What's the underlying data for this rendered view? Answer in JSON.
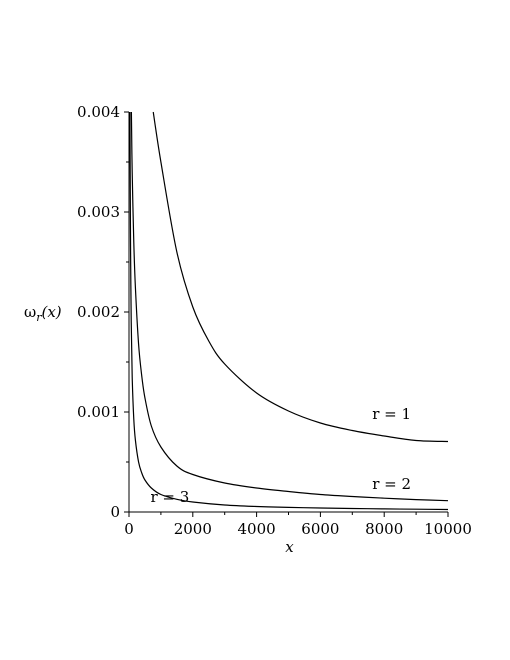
{
  "chart_data": {
    "type": "line",
    "xlabel": "x",
    "ylabel": "ω_r(x)",
    "ylabel_main": "ω",
    "ylabel_sub": "r",
    "ylabel_rest": "(x)",
    "xlim": [
      0,
      10000
    ],
    "ylim": [
      0,
      0.004
    ],
    "x_ticks": [
      0,
      2000,
      4000,
      6000,
      8000,
      10000
    ],
    "x_tick_labels": [
      "0",
      "2000",
      "4000",
      "6000",
      "8000",
      "10000"
    ],
    "y_ticks": [
      0,
      0.001,
      0.002,
      0.003,
      0.004
    ],
    "y_tick_labels": [
      "0",
      "0.001",
      "0.002",
      "0.003",
      "0.004"
    ],
    "grid": false,
    "series": [
      {
        "name": "r = 1",
        "label_at": [
          8000,
          0.00098
        ],
        "x": [
          760,
          1000,
          1500,
          2000,
          2500,
          3000,
          4000,
          5000,
          6000,
          7000,
          8000,
          9000,
          10000
        ],
        "y": [
          0.004,
          0.0035,
          0.0026,
          0.00205,
          0.00171,
          0.00148,
          0.00119,
          0.00101,
          0.00089,
          0.000815,
          0.00076,
          0.000715,
          0.000705
        ]
      },
      {
        "name": "r = 2",
        "label_at": [
          8000,
          0.00028
        ],
        "x": [
          75,
          100,
          150,
          200,
          300,
          400,
          500,
          700,
          1000,
          1500,
          2000,
          3000,
          4000,
          5000,
          6000,
          7000,
          8000,
          9000,
          10000
        ],
        "y": [
          0.004,
          0.0034,
          0.0027,
          0.00225,
          0.00168,
          0.00136,
          0.00114,
          0.00086,
          0.00065,
          0.00046,
          0.000375,
          0.00029,
          0.00024,
          0.000205,
          0.000175,
          0.000155,
          0.000138,
          0.000124,
          0.000113
        ]
      },
      {
        "name": "r = 3",
        "label_at": [
          1050,
          0.00015
        ],
        "x": [
          30,
          40,
          50,
          70,
          100,
          150,
          200,
          300,
          400,
          500,
          700,
          1000,
          1500,
          2000,
          3000,
          4000,
          5000,
          6000,
          7000,
          8000,
          9000,
          10000
        ],
        "y": [
          0.004,
          0.0032,
          0.0026,
          0.0019,
          0.00135,
          0.00093,
          0.00072,
          0.0005,
          0.00039,
          0.00032,
          0.00024,
          0.000175,
          0.000127,
          0.0001,
          7e-05,
          5.5e-05,
          4.6e-05,
          4e-05,
          3.5e-05,
          3.1e-05,
          2.8e-05,
          2.5e-05
        ]
      }
    ]
  }
}
